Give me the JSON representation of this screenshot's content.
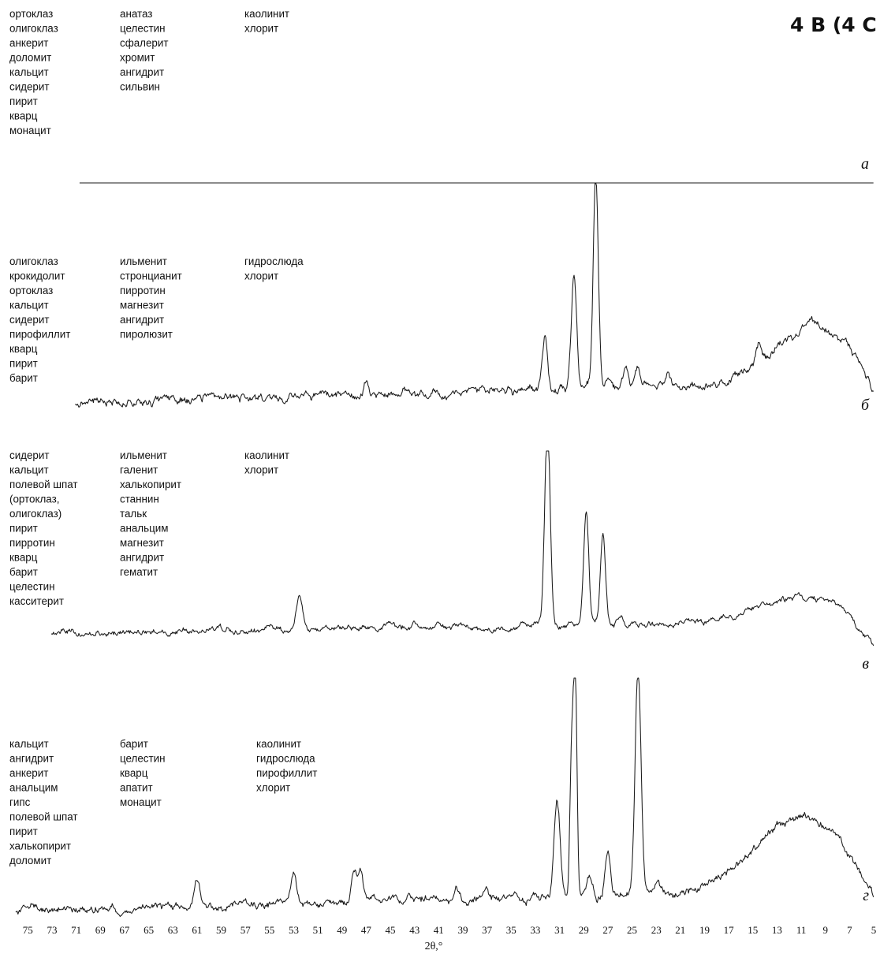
{
  "title": "4 В (4 С",
  "chart_data": [
    {
      "type": "line",
      "panel_label": "а",
      "mineral_columns": [
        [
          "ортоклаз",
          "олигоклаз",
          "анкерит",
          "доломит",
          "кальцит",
          "сидерит",
          "пирит",
          "кварц",
          "монацит"
        ],
        [
          "анатаз",
          "целестин",
          "сфалерит",
          "хромит",
          "ангидрит",
          "сильвин"
        ],
        [
          "каолинит",
          "хлорит"
        ]
      ],
      "baseline": {
        "start": 0.04,
        "end": 0.12,
        "hump": 0.4,
        "hump_center": 10,
        "hump_width": 5,
        "drop_below": 6
      },
      "peaks": [
        {
          "x": 31.0,
          "h": 0.45,
          "w": 0.35
        },
        {
          "x": 29.5,
          "h": 0.12,
          "w": 0.3
        },
        {
          "x": 28.0,
          "h": 0.92,
          "w": 0.3
        },
        {
          "x": 25.7,
          "h": 0.18,
          "w": 0.3
        },
        {
          "x": 24.5,
          "h": 0.16,
          "w": 0.3
        },
        {
          "x": 22.0,
          "h": 0.12,
          "w": 0.3
        },
        {
          "x": 12.6,
          "h": 0.2,
          "w": 0.35
        },
        {
          "x": 7.0,
          "h": 0.08,
          "w": 0.3
        }
      ],
      "noise": 0.012,
      "seed": 7
    },
    {
      "type": "line",
      "panel_label": "б",
      "mineral_columns": [
        [
          "олигоклаз",
          "крокидолит",
          "ортоклаз",
          "кальцит",
          "сидерит",
          "пирофиллит",
          "кварц",
          "пирит",
          "барит"
        ],
        [
          "ильменит",
          "стронцианит",
          "пирротин",
          "магнезит",
          "ангидрит",
          "пиролюзит"
        ],
        [
          "гидрослюда",
          "хлорит"
        ]
      ],
      "baseline": {
        "start": 0.0,
        "end": 0.12,
        "hump": 0.3,
        "hump_center": 10,
        "hump_width": 4.5,
        "drop_below": 7
      },
      "peaks": [
        {
          "x": 32.2,
          "h": 0.3,
          "w": 0.3
        },
        {
          "x": 29.8,
          "h": 0.6,
          "w": 0.3
        },
        {
          "x": 28.0,
          "h": 1.12,
          "w": 0.3
        },
        {
          "x": 27.0,
          "h": 0.08,
          "w": 0.3
        },
        {
          "x": 25.5,
          "h": 0.1,
          "w": 0.3
        },
        {
          "x": 24.5,
          "h": 0.1,
          "w": 0.3
        },
        {
          "x": 22.0,
          "h": 0.08,
          "w": 0.3
        },
        {
          "x": 52.0,
          "h": 0.05,
          "w": 0.3
        },
        {
          "x": 47.0,
          "h": 0.06,
          "w": 0.3
        },
        {
          "x": 14.5,
          "h": 0.1,
          "w": 0.35
        }
      ],
      "noise": 0.012,
      "seed": 21
    },
    {
      "type": "line",
      "panel_label": "в",
      "mineral_columns": [
        [
          "сидерит",
          "кальцит",
          "полевой шпат",
          "  (ортоклаз,",
          "  олигоклаз)",
          "пирит",
          "пирротин",
          "кварц",
          "барит",
          "целестин",
          "касситерит"
        ],
        [
          "ильменит",
          "галенит",
          "халькопирит",
          "станнин",
          "тальк",
          "анальцим",
          "магнезит",
          "ангидрит",
          "гематит"
        ],
        [
          "каолинит",
          "хлорит"
        ]
      ],
      "baseline": {
        "start": 0.02,
        "end": 0.1,
        "hump": 0.15,
        "hump_center": 11,
        "hump_width": 5,
        "drop_below": 8
      },
      "peaks": [
        {
          "x": 52.5,
          "h": 0.2,
          "w": 0.4
        },
        {
          "x": 32.0,
          "h": 1.2,
          "w": 0.32
        },
        {
          "x": 28.8,
          "h": 0.68,
          "w": 0.3
        },
        {
          "x": 27.4,
          "h": 0.55,
          "w": 0.3
        },
        {
          "x": 26.0,
          "h": 0.06,
          "w": 0.3
        },
        {
          "x": 43.0,
          "h": 0.04,
          "w": 0.3
        },
        {
          "x": 41.0,
          "h": 0.04,
          "w": 0.3
        }
      ],
      "noise": 0.01,
      "seed": 45
    },
    {
      "type": "line",
      "panel_label": "г",
      "mineral_columns": [
        [
          "кальцит",
          "ангидрит",
          "анкерит",
          "анальцим",
          "гипс",
          "полевой шпат",
          "пирит",
          "халькопирит",
          "доломит"
        ],
        [
          "барит",
          "целестин",
          "кварц",
          "апатит",
          "монацит"
        ],
        [
          "каолинит",
          "гидрослюда",
          "пирофиллит",
          "хлорит"
        ]
      ],
      "baseline": {
        "start": 0.0,
        "end": 0.12,
        "hump": 0.4,
        "hump_center": 11,
        "hump_width": 5.5,
        "drop_below": 8
      },
      "peaks": [
        {
          "x": 61.0,
          "h": 0.15,
          "w": 0.35
        },
        {
          "x": 53.0,
          "h": 0.2,
          "w": 0.35
        },
        {
          "x": 48.0,
          "h": 0.18,
          "w": 0.3
        },
        {
          "x": 47.5,
          "h": 0.18,
          "w": 0.3
        },
        {
          "x": 31.2,
          "h": 0.55,
          "w": 0.35
        },
        {
          "x": 30.0,
          "h": 0.8,
          "w": 0.2
        },
        {
          "x": 29.7,
          "h": 1.25,
          "w": 0.2
        },
        {
          "x": 28.5,
          "h": 0.1,
          "w": 0.3
        },
        {
          "x": 27.0,
          "h": 0.25,
          "w": 0.3
        },
        {
          "x": 24.5,
          "h": 1.25,
          "w": 0.35
        },
        {
          "x": 23.0,
          "h": 0.06,
          "w": 0.3
        },
        {
          "x": 37.0,
          "h": 0.05,
          "w": 0.3
        },
        {
          "x": 39.5,
          "h": 0.05,
          "w": 0.3
        },
        {
          "x": 43.5,
          "h": 0.05,
          "w": 0.3
        }
      ],
      "noise": 0.012,
      "seed": 99
    }
  ],
  "x_axis": {
    "ticks": [
      75,
      73,
      71,
      69,
      67,
      65,
      63,
      61,
      59,
      57,
      55,
      53,
      51,
      49,
      47,
      45,
      43,
      41,
      39,
      37,
      35,
      33,
      31,
      29,
      27,
      25,
      23,
      21,
      19,
      17,
      15,
      13,
      11,
      9,
      7,
      5
    ],
    "xlim": [
      76,
      5
    ],
    "label": "2θ,°",
    "direction": "descending"
  }
}
